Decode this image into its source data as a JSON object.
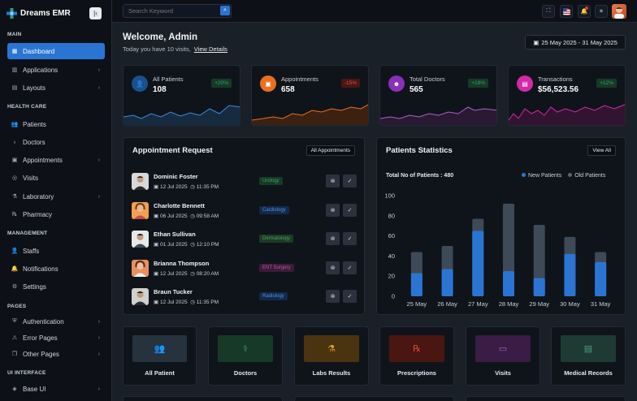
{
  "brand": {
    "name": "Dreams EMR"
  },
  "sidebar": {
    "sections": [
      {
        "title": "MAIN"
      },
      {
        "title": "HEALTH CARE"
      },
      {
        "title": "MANAGEMENT"
      },
      {
        "title": "PAGES"
      },
      {
        "title": "UI INTERFACE"
      }
    ],
    "items": [
      {
        "label": "Dashboard"
      },
      {
        "label": "Applications"
      },
      {
        "label": "Layouts"
      },
      {
        "label": "Patients"
      },
      {
        "label": "Doctors"
      },
      {
        "label": "Appointments"
      },
      {
        "label": "Visits"
      },
      {
        "label": "Laboratory"
      },
      {
        "label": "Pharmacy"
      },
      {
        "label": "Staffs"
      },
      {
        "label": "Notifications"
      },
      {
        "label": "Settings"
      },
      {
        "label": "Authentication"
      },
      {
        "label": "Error Pages"
      },
      {
        "label": "Other Pages"
      },
      {
        "label": "Base UI"
      }
    ]
  },
  "search": {
    "placeholder": "Search Keyword"
  },
  "header": {
    "welcome": "Welcome, Admin",
    "subtitle": "Today you have 10 visits,",
    "details_link": "View Details",
    "date_range": "25 May 2025 - 31 May 2025"
  },
  "stats": [
    {
      "label": "All Patients",
      "value": "108",
      "badge": "+20%",
      "color": "#2a75d3"
    },
    {
      "label": "Appointments",
      "value": "658",
      "badge": "-15%",
      "color": "#e8701f"
    },
    {
      "label": "Total Doctors",
      "value": "565",
      "badge": "+18%",
      "color": "#8b2fb8"
    },
    {
      "label": "Transactions",
      "value": "$56,523.56",
      "badge": "+12%",
      "color": "#d02aa8"
    }
  ],
  "appointments": {
    "title": "Appointment Request",
    "button": "All Appointments",
    "rows": [
      {
        "name": "Dominic Foster",
        "date": "12 Jul 2025",
        "time": "11:35 PM",
        "dept": "Urology"
      },
      {
        "name": "Charlotte Bennett",
        "date": "06 Jul 2025",
        "time": "09:58 AM",
        "dept": "Cardiology"
      },
      {
        "name": "Ethan Sullivan",
        "date": "01 Jul 2025",
        "time": "12:10 PM",
        "dept": "Dermatology"
      },
      {
        "name": "Brianna Thompson",
        "date": "12 Jul 2025",
        "time": "08:20 AM",
        "dept": "ENT Surgery"
      },
      {
        "name": "Braun Tucker",
        "date": "12 Jul 2025",
        "time": "11:35 PM",
        "dept": "Radiology"
      }
    ]
  },
  "patients_stats": {
    "title": "Patients Statistics",
    "button": "View All",
    "total_label": "Total No of Patients : 480"
  },
  "chart_data": {
    "type": "bar",
    "categories": [
      "25 May",
      "26 May",
      "27 May",
      "28 May",
      "29 May",
      "30 May",
      "31 May"
    ],
    "series": [
      {
        "name": "New Patients",
        "values": [
          23,
          27,
          65,
          25,
          18,
          42,
          34
        ]
      },
      {
        "name": "Old Patients",
        "values": [
          44,
          50,
          77,
          92,
          71,
          59,
          44
        ]
      }
    ],
    "ylim": [
      0,
      100
    ],
    "yticks": [
      0,
      20,
      40,
      60,
      80,
      100
    ],
    "colors": {
      "New Patients": "#2a75d3",
      "Old Patients": "#3e4a58"
    },
    "legend": "top-right"
  },
  "tiles": [
    {
      "label": "All Patient",
      "icon": "users-icon",
      "bg": "#26323d",
      "fg": "#6a8aa0"
    },
    {
      "label": "Doctors",
      "icon": "stethoscope-icon",
      "bg": "#163a26",
      "fg": "#3aa060"
    },
    {
      "label": "Labs Results",
      "icon": "test-tube-icon",
      "bg": "#4a3410",
      "fg": "#e8a030"
    },
    {
      "label": "Prescriptions",
      "icon": "rx-icon",
      "bg": "#4a1612",
      "fg": "#d84a3a"
    },
    {
      "label": "Visits",
      "icon": "visit-icon",
      "bg": "#3a1c44",
      "fg": "#b060c8"
    },
    {
      "label": "Medical Records",
      "icon": "file-icon",
      "bg": "#1e3a32",
      "fg": "#4aa080"
    }
  ]
}
